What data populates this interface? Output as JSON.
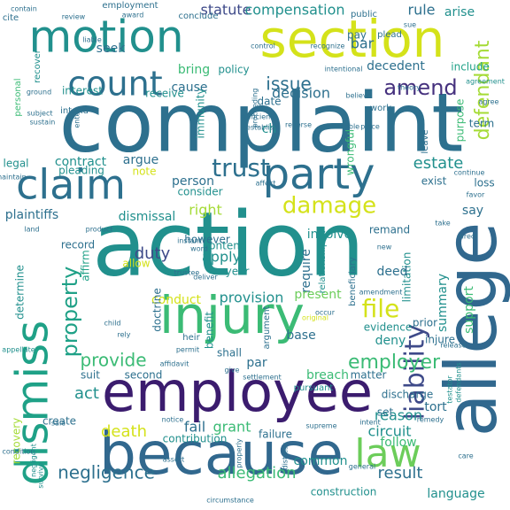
{
  "cloud": {
    "palette": {
      "dark_purple": "#3b1c6e",
      "purple": "#46317e",
      "indigo": "#3e4a89",
      "blue": "#31688e",
      "steel": "#2d708e",
      "teal": "#21908d",
      "sea": "#1fa187",
      "green": "#3bbb75",
      "light_green": "#6ccd5a",
      "yellow_green": "#a5db36",
      "yellow": "#d4e21a"
    },
    "words": [
      {
        "text": "complaint",
        "color": "steel"
      },
      {
        "text": "action",
        "color": "teal"
      },
      {
        "text": "allege",
        "color": "blue"
      },
      {
        "text": "because",
        "color": "blue"
      },
      {
        "text": "section",
        "color": "yellow"
      },
      {
        "text": "employee",
        "color": "dark_purple"
      },
      {
        "text": "injury",
        "color": "green"
      },
      {
        "text": "dismiss",
        "color": "sea"
      },
      {
        "text": "party",
        "color": "steel"
      },
      {
        "text": "motion",
        "color": "teal"
      },
      {
        "text": "claim",
        "color": "steel"
      },
      {
        "text": "count",
        "color": "steel"
      },
      {
        "text": "law",
        "color": "light_green"
      },
      {
        "text": "damage",
        "color": "yellow"
      },
      {
        "text": "defendant",
        "color": "yellow_green"
      },
      {
        "text": "liability",
        "color": "indigo"
      },
      {
        "text": "trust",
        "color": "steel"
      },
      {
        "text": "amend",
        "color": "purple"
      },
      {
        "text": "property",
        "color": "sea"
      },
      {
        "text": "file",
        "color": "yellow"
      },
      {
        "text": "provide",
        "color": "green"
      },
      {
        "text": "employer",
        "color": "green"
      },
      {
        "text": "negligence",
        "color": "steel"
      },
      {
        "text": "allegation",
        "color": "green"
      },
      {
        "text": "result",
        "color": "steel"
      },
      {
        "text": "issue",
        "color": "steel"
      },
      {
        "text": "decision",
        "color": "steel"
      },
      {
        "text": "person",
        "color": "steel"
      },
      {
        "text": "estate",
        "color": "teal"
      },
      {
        "text": "provision",
        "color": "teal"
      },
      {
        "text": "death",
        "color": "yellow"
      },
      {
        "text": "fail",
        "color": "steel"
      },
      {
        "text": "grant",
        "color": "green"
      },
      {
        "text": "act",
        "color": "teal"
      },
      {
        "text": "apply",
        "color": "teal"
      },
      {
        "text": "right",
        "color": "yellow_green"
      },
      {
        "text": "duty",
        "color": "indigo"
      },
      {
        "text": "summary",
        "color": "teal"
      },
      {
        "text": "support",
        "color": "green"
      },
      {
        "text": "tort",
        "color": "steel"
      },
      {
        "text": "circuit",
        "color": "teal"
      },
      {
        "text": "reason",
        "color": "teal"
      },
      {
        "text": "follow",
        "color": "green"
      },
      {
        "text": "common",
        "color": "teal"
      },
      {
        "text": "language",
        "color": "teal"
      },
      {
        "text": "statute",
        "color": "indigo"
      },
      {
        "text": "compensation",
        "color": "teal"
      },
      {
        "text": "rule",
        "color": "steel"
      },
      {
        "text": "arise",
        "color": "teal"
      },
      {
        "text": "seek",
        "color": "steel"
      },
      {
        "text": "bar",
        "color": "steel"
      },
      {
        "text": "pay",
        "color": "steel"
      },
      {
        "text": "plead",
        "color": "steel"
      },
      {
        "text": "bring",
        "color": "green"
      },
      {
        "text": "policy",
        "color": "teal"
      },
      {
        "text": "cause",
        "color": "steel"
      },
      {
        "text": "decedent",
        "color": "steel"
      },
      {
        "text": "include",
        "color": "sea"
      },
      {
        "text": "interest",
        "color": "teal"
      },
      {
        "text": "receive",
        "color": "teal"
      },
      {
        "text": "contract",
        "color": "teal"
      },
      {
        "text": "argue",
        "color": "steel"
      },
      {
        "text": "pleading",
        "color": "teal"
      },
      {
        "text": "consider",
        "color": "teal"
      },
      {
        "text": "dismissal",
        "color": "teal"
      },
      {
        "text": "plaintiffs",
        "color": "steel"
      },
      {
        "text": "determine",
        "color": "teal"
      },
      {
        "text": "record",
        "color": "steel"
      },
      {
        "text": "affirm",
        "color": "sea"
      },
      {
        "text": "conduct",
        "color": "yellow"
      },
      {
        "text": "require",
        "color": "steel"
      },
      {
        "text": "limitation",
        "color": "teal"
      },
      {
        "text": "deny",
        "color": "teal"
      },
      {
        "text": "evidence",
        "color": "teal"
      },
      {
        "text": "benefit",
        "color": "teal"
      },
      {
        "text": "base",
        "color": "steel"
      },
      {
        "text": "par",
        "color": "steel"
      },
      {
        "text": "suit",
        "color": "steel"
      },
      {
        "text": "second",
        "color": "steel"
      },
      {
        "text": "doctrine",
        "color": "steel"
      },
      {
        "text": "breach",
        "color": "green"
      },
      {
        "text": "matter",
        "color": "steel"
      },
      {
        "text": "discharge",
        "color": "steel"
      },
      {
        "text": "contribution",
        "color": "teal"
      },
      {
        "text": "failure",
        "color": "steel"
      },
      {
        "text": "construction",
        "color": "teal"
      },
      {
        "text": "involve",
        "color": "teal"
      },
      {
        "text": "remand",
        "color": "steel"
      },
      {
        "text": "say",
        "color": "steel"
      },
      {
        "text": "loss",
        "color": "steel"
      },
      {
        "text": "deed",
        "color": "steel"
      },
      {
        "text": "year",
        "color": "teal"
      },
      {
        "text": "present",
        "color": "light_green"
      },
      {
        "text": "shall",
        "color": "steel"
      },
      {
        "text": "set",
        "color": "steel"
      },
      {
        "text": "injure",
        "color": "steel"
      },
      {
        "text": "prior",
        "color": "steel"
      },
      {
        "text": "note",
        "color": "yellow"
      },
      {
        "text": "however",
        "color": "steel"
      },
      {
        "text": "contend",
        "color": "teal"
      },
      {
        "text": "allow",
        "color": "yellow"
      },
      {
        "text": "employment",
        "color": "steel"
      },
      {
        "text": "conclude",
        "color": "steel"
      },
      {
        "text": "public",
        "color": "steel"
      },
      {
        "text": "intend",
        "color": "steel"
      },
      {
        "text": "work",
        "color": "steel"
      },
      {
        "text": "term",
        "color": "steel"
      },
      {
        "text": "legal",
        "color": "teal"
      },
      {
        "text": "purpose",
        "color": "green"
      },
      {
        "text": "wrongful",
        "color": "green"
      },
      {
        "text": "immunity",
        "color": "teal"
      },
      {
        "text": "date",
        "color": "steel"
      },
      {
        "text": "leave",
        "color": "steel"
      },
      {
        "text": "exist",
        "color": "steel"
      },
      {
        "text": "ch",
        "color": "teal"
      },
      {
        "text": "cite",
        "color": "steel"
      },
      {
        "text": "recovery",
        "color": "yellow_green"
      },
      {
        "text": "create",
        "color": "steel"
      },
      {
        "text": "argument",
        "color": "steel"
      },
      {
        "text": "heir",
        "color": "steel"
      },
      {
        "text": "pursuant",
        "color": "teal"
      },
      {
        "text": "beneficiary",
        "color": "steel"
      },
      {
        "text": "relationship",
        "color": "teal"
      },
      {
        "text": "personal",
        "color": "green"
      },
      {
        "text": "recover",
        "color": "teal"
      },
      {
        "text": "agreement",
        "color": "teal"
      },
      {
        "text": "theory",
        "color": "steel"
      },
      {
        "text": "agree",
        "color": "steel"
      },
      {
        "text": "establish",
        "color": "steel"
      },
      {
        "text": "reasonable",
        "color": "steel"
      },
      {
        "text": "reverse",
        "color": "steel"
      },
      {
        "text": "sufficient",
        "color": "steel"
      },
      {
        "text": "subject",
        "color": "steel"
      },
      {
        "text": "sustain",
        "color": "steel"
      },
      {
        "text": "enter",
        "color": "steel"
      },
      {
        "text": "proceeding",
        "color": "steel"
      },
      {
        "text": "believe",
        "color": "steel"
      },
      {
        "text": "sue",
        "color": "steel"
      },
      {
        "text": "liable",
        "color": "steel"
      },
      {
        "text": "review",
        "color": "steel"
      },
      {
        "text": "award",
        "color": "steel"
      },
      {
        "text": "control",
        "color": "steel"
      },
      {
        "text": "recognize",
        "color": "steel"
      },
      {
        "text": "intentional",
        "color": "steel"
      },
      {
        "text": "contain",
        "color": "steel"
      },
      {
        "text": "ground",
        "color": "steel"
      },
      {
        "text": "place",
        "color": "steel"
      },
      {
        "text": "continue",
        "color": "steel"
      },
      {
        "text": "favor",
        "color": "steel"
      },
      {
        "text": "take",
        "color": "steel"
      },
      {
        "text": "direct",
        "color": "steel"
      },
      {
        "text": "new",
        "color": "steel"
      },
      {
        "text": "land",
        "color": "steel"
      },
      {
        "text": "product",
        "color": "steel"
      },
      {
        "text": "instant",
        "color": "steel"
      },
      {
        "text": "word",
        "color": "steel"
      },
      {
        "text": "deliver",
        "color": "steel"
      },
      {
        "text": "amendment",
        "color": "steel"
      },
      {
        "text": "occur",
        "color": "steel"
      },
      {
        "text": "original",
        "color": "yellow"
      },
      {
        "text": "child",
        "color": "steel"
      },
      {
        "text": "rely",
        "color": "steel"
      },
      {
        "text": "appellate",
        "color": "teal"
      },
      {
        "text": "permit",
        "color": "steel"
      },
      {
        "text": "affidavit",
        "color": "steel"
      },
      {
        "text": "give",
        "color": "steel"
      },
      {
        "text": "settlement",
        "color": "steel"
      },
      {
        "text": "release",
        "color": "steel"
      },
      {
        "text": "intent",
        "color": "steel"
      },
      {
        "text": "remedy",
        "color": "steel"
      },
      {
        "text": "testator",
        "color": "teal"
      },
      {
        "text": "defendants",
        "color": "teal"
      },
      {
        "text": "condition",
        "color": "steel"
      },
      {
        "text": "negligent",
        "color": "teal"
      },
      {
        "text": "survive",
        "color": "teal"
      },
      {
        "text": "sale",
        "color": "steel"
      },
      {
        "text": "notice",
        "color": "steel"
      },
      {
        "text": "assert",
        "color": "steel"
      },
      {
        "text": "supreme",
        "color": "steel"
      },
      {
        "text": "care",
        "color": "steel"
      },
      {
        "text": "trustee",
        "color": "steel"
      },
      {
        "text": "general",
        "color": "steel"
      },
      {
        "text": "properly",
        "color": "steel"
      },
      {
        "text": "distress",
        "color": "steel"
      },
      {
        "text": "circumstance",
        "color": "steel"
      },
      {
        "text": "affect",
        "color": "steel"
      },
      {
        "text": "maintain",
        "color": "steel"
      }
    ]
  }
}
